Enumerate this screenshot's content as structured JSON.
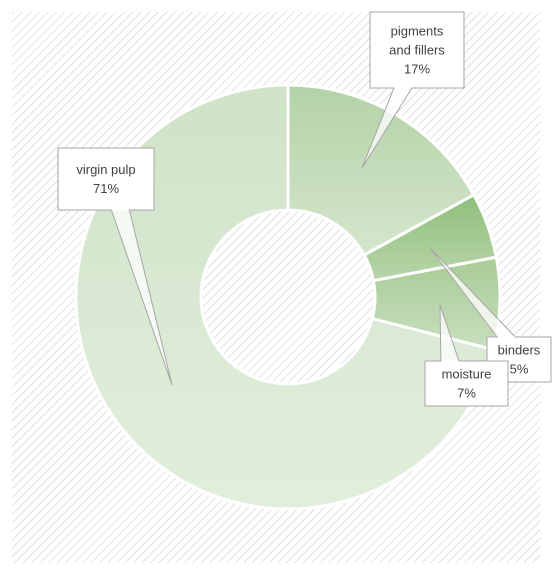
{
  "chart_data": {
    "type": "pie",
    "variant": "donut",
    "title": "",
    "legend": "none",
    "background": "diagonal-hatch",
    "slices": [
      {
        "label_lines": [
          "pigments",
          "and fillers"
        ],
        "value": 17,
        "value_label": "17%",
        "color": "#c6dcbc"
      },
      {
        "label_lines": [
          "binders"
        ],
        "value": 5,
        "value_label": "5%",
        "color": "#a5cb93"
      },
      {
        "label_lines": [
          "moisture"
        ],
        "value": 7,
        "value_label": "7%",
        "color": "#bcd6b0"
      },
      {
        "label_lines": [
          "virgin pulp"
        ],
        "value": 71,
        "value_label": "71%",
        "color": "#d8e8d2"
      }
    ]
  }
}
